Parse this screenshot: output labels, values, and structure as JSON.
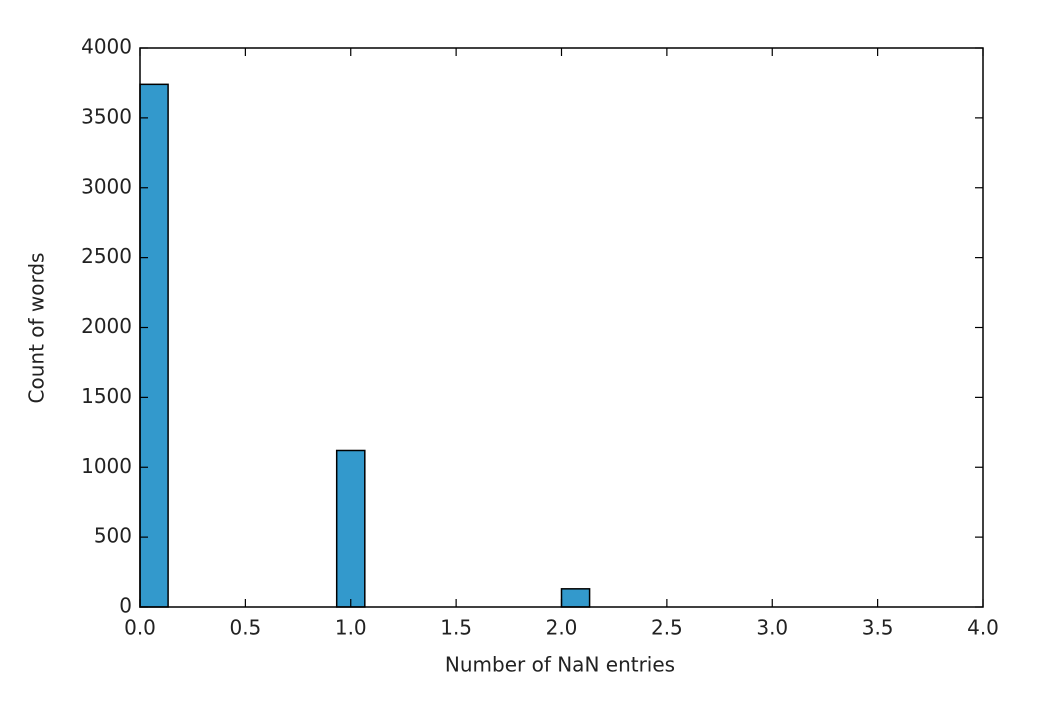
{
  "chart_data": {
    "type": "histogram",
    "xlabel": "Number of NaN entries",
    "ylabel": "Count of words",
    "bins": [
      0,
      0.1333,
      0.2667,
      0.4,
      0.5333,
      0.6667,
      0.8,
      0.9333,
      1.0667,
      1.2,
      1.3333,
      1.4667,
      1.6,
      1.7333,
      1.8667,
      2,
      2.1333,
      2.2667,
      2.4,
      2.5333,
      2.6667,
      2.8,
      2.9333,
      3.0667,
      3.2,
      3.3333,
      3.4667,
      3.6,
      3.7333,
      3.8667,
      4
    ],
    "values": [
      3740,
      0,
      0,
      0,
      0,
      0,
      0,
      1120,
      0,
      0,
      0,
      0,
      0,
      0,
      0,
      130,
      0,
      0,
      0,
      0,
      0,
      0,
      0,
      0,
      0,
      0,
      0,
      0,
      0,
      0
    ],
    "color": "#3399cc",
    "xlim": [
      0,
      4
    ],
    "xticks": [
      {
        "value": 0,
        "label": "0.0"
      },
      {
        "value": 0.5,
        "label": "0.5"
      },
      {
        "value": 1,
        "label": "1.0"
      },
      {
        "value": 1.5,
        "label": "1.5"
      },
      {
        "value": 2,
        "label": "2.0"
      },
      {
        "value": 2.5,
        "label": "2.5"
      },
      {
        "value": 3,
        "label": "3.0"
      },
      {
        "value": 3.5,
        "label": "3.5"
      },
      {
        "value": 4,
        "label": "4.0"
      }
    ],
    "ylim": [
      0,
      4000
    ],
    "yticks": [
      0,
      500,
      1000,
      1500,
      2000,
      2500,
      3000,
      3500,
      4000
    ],
    "grid": false
  }
}
